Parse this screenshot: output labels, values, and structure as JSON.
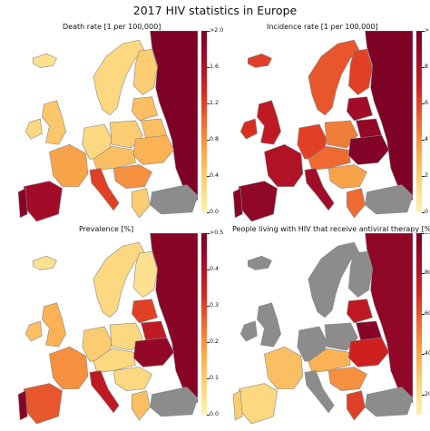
{
  "title": "2017 HIV statistics in Europe",
  "colors": {
    "gradient": [
      "#fff2b2",
      "#fcd57a",
      "#f9a94b",
      "#ee6a32",
      "#d7261e",
      "#a60d28",
      "#790026"
    ],
    "nodata": "#8c8c8c",
    "border": "#888888"
  },
  "panels": [
    {
      "title": "Death rate [1 per 100,000]",
      "ticks": [
        "0.0",
        "0.4",
        "0.8",
        "1.2",
        "1.6",
        ">2.0"
      ],
      "colorbar_range": [
        0,
        2.0
      ],
      "regions": {
        "russia": 0.98,
        "scandinavia": 0.15,
        "finland": 0.2,
        "baltics": 0.25,
        "uk": 0.22,
        "ireland": 0.15,
        "iceland": 0.1,
        "france": 0.35,
        "iberia": 0.85,
        "portugal": 0.95,
        "italy": 0.6,
        "germany": 0.15,
        "poland": 0.2,
        "central": 0.25,
        "ukraine": 0.3,
        "balkans": 0.4,
        "greece": 0.2,
        "turkey": null,
        "belarus": 0.25
      }
    },
    {
      "title": "Incidence rate [1 per 100,000]",
      "ticks": [
        "0",
        "2",
        "4",
        "6",
        "8",
        ">10"
      ],
      "colorbar_range": [
        0,
        10
      ],
      "regions": {
        "russia": 0.98,
        "scandinavia": 0.55,
        "finland": 0.6,
        "baltics": 0.85,
        "uk": 0.75,
        "ireland": 0.65,
        "iceland": 0.6,
        "france": 0.8,
        "iberia": 0.92,
        "portugal": 0.95,
        "italy": 0.85,
        "germany": 0.6,
        "poland": 0.45,
        "central": 0.5,
        "ukraine": 0.97,
        "balkans": 0.35,
        "greece": 0.5,
        "turkey": null,
        "belarus": 0.9
      }
    },
    {
      "title": "Prevalence [%]",
      "ticks": [
        "0.0",
        "0.1",
        "0.2",
        "0.3",
        "0.4",
        ">0.5"
      ],
      "colorbar_range": [
        0,
        0.5
      ],
      "regions": {
        "russia": 0.95,
        "scandinavia": 0.15,
        "finland": 0.1,
        "baltics": 0.6,
        "uk": 0.3,
        "ireland": 0.25,
        "iceland": 0.1,
        "france": 0.4,
        "iberia": 0.55,
        "portugal": 0.95,
        "italy": 0.75,
        "germany": 0.2,
        "poland": 0.15,
        "central": 0.15,
        "ukraine": 0.9,
        "balkans": 0.15,
        "greece": 0.25,
        "turkey": null,
        "belarus": 0.75
      }
    },
    {
      "title": "People living with HIV that  receive antiviral therapy [%]",
      "ticks": [
        "20",
        "40",
        "60",
        "80",
        "100"
      ],
      "colorbar_range": [
        10,
        100
      ],
      "regions": {
        "russia": 0.92,
        "scandinavia": null,
        "finland": null,
        "baltics": 0.75,
        "uk": null,
        "ireland": null,
        "iceland": null,
        "france": 0.25,
        "iberia": 0.15,
        "portugal": 0.2,
        "italy": null,
        "germany": null,
        "poland": null,
        "central": 0.3,
        "ukraine": 0.7,
        "balkans": 0.4,
        "greece": 0.6,
        "turkey": null,
        "belarus": 0.95
      }
    }
  ]
}
